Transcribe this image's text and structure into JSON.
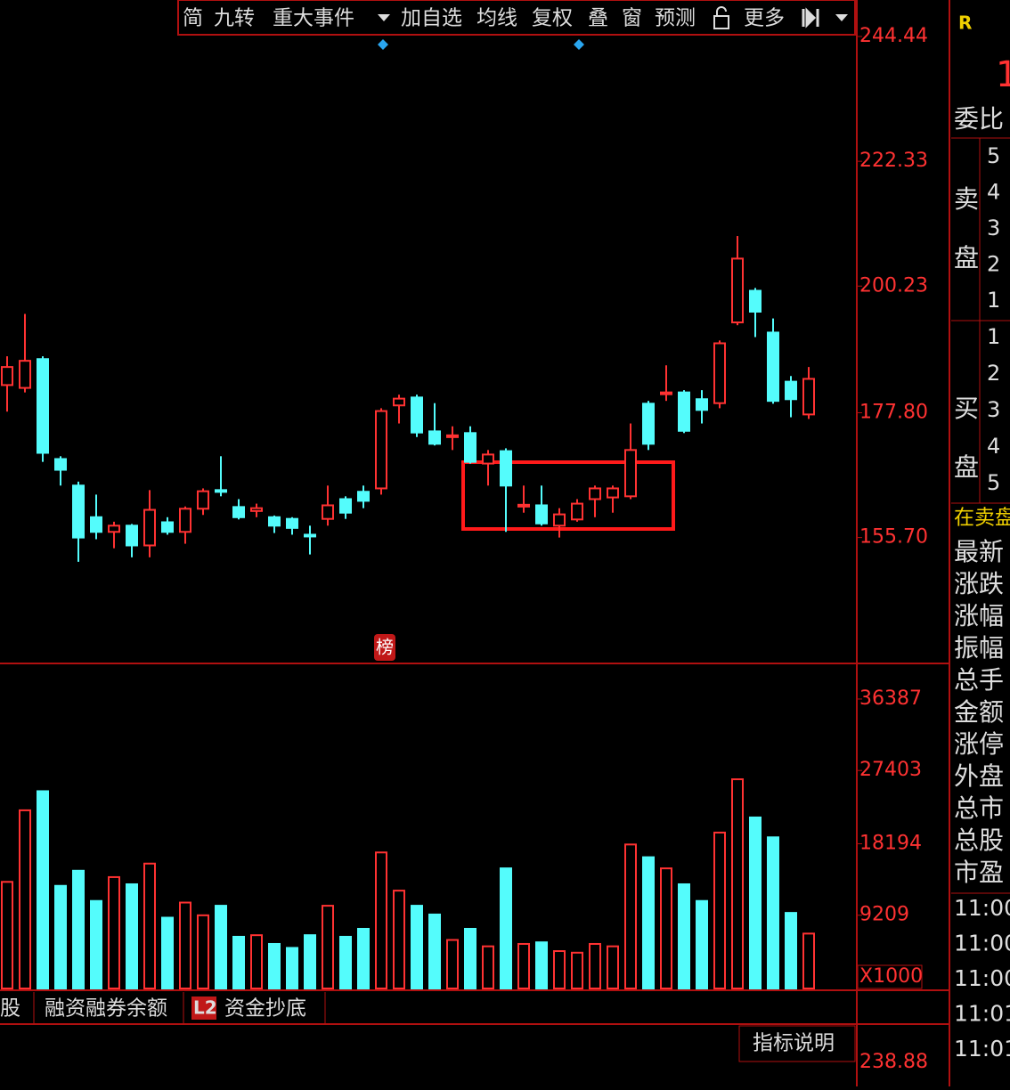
{
  "chart_data": {
    "type": "candlestick",
    "up_color": "#ff3232",
    "down_color": "#54fcfc",
    "ylim": [
      133.4,
      250.9
    ],
    "yticks": [
      244.44,
      222.33,
      200.23,
      {
        "value": 177.8,
        "label": "177.80"
      },
      {
        "value": 155.7,
        "label": "155.70"
      }
    ],
    "open": [
      182.7,
      182.2,
      187.3,
      169.6,
      164.9,
      159.3,
      156.7,
      157.8,
      154.3,
      158.4,
      156.7,
      160.8,
      164.1,
      161.1,
      160.4,
      159.3,
      159.0,
      156.2,
      159.0,
      162.5,
      163.8,
      164.4,
      179.1,
      180.5,
      174.5,
      173.5,
      174.2,
      168.8,
      171.0,
      161.2,
      161.4,
      157.8,
      158.9,
      162.5,
      162.8,
      163.0,
      179.4,
      181.1,
      181.4,
      180.2,
      179.5,
      193.8,
      199.4,
      192.0,
      183.3,
      177.5
    ],
    "high": [
      187.8,
      195.3,
      187.8,
      170.1,
      165.6,
      163.3,
      158.5,
      158.1,
      164.1,
      159.3,
      161.2,
      164.4,
      170.1,
      162.5,
      161.7,
      159.6,
      159.3,
      157.8,
      164.9,
      163.0,
      164.9,
      178.6,
      181.0,
      181.0,
      179.5,
      175.4,
      175.4,
      171.2,
      171.5,
      164.9,
      164.9,
      160.9,
      162.5,
      164.9,
      164.9,
      175.9,
      179.9,
      186.2,
      181.8,
      181.8,
      190.6,
      209.1,
      199.9,
      194.5,
      184.3,
      185.9
    ],
    "low": [
      178.0,
      181.4,
      169.1,
      164.9,
      151.4,
      155.4,
      153.8,
      152.2,
      152.2,
      156.2,
      154.6,
      159.7,
      163.0,
      158.9,
      159.3,
      156.5,
      156.2,
      152.7,
      157.8,
      159.0,
      160.9,
      163.3,
      175.9,
      173.5,
      172.0,
      171.2,
      168.8,
      164.9,
      156.7,
      160.1,
      157.8,
      155.7,
      158.5,
      159.3,
      160.1,
      162.5,
      171.2,
      179.9,
      174.2,
      175.9,
      178.6,
      193.3,
      191.2,
      179.4,
      177.0,
      176.7
    ],
    "close": [
      185.9,
      187.0,
      170.7,
      167.7,
      155.7,
      156.7,
      157.8,
      154.3,
      160.6,
      156.7,
      160.8,
      163.9,
      163.8,
      159.3,
      160.9,
      157.8,
      157.4,
      155.9,
      161.4,
      160.1,
      162.2,
      178.1,
      180.3,
      174.3,
      172.3,
      173.8,
      169.1,
      170.4,
      164.9,
      161.5,
      158.2,
      159.8,
      161.7,
      164.4,
      164.4,
      171.2,
      172.3,
      181.4,
      174.6,
      178.3,
      190.1,
      205.1,
      195.7,
      179.9,
      180.2,
      183.8
    ],
    "volume": {
      "ylim": [
        0,
        40300
      ],
      "yticks": [
        36387,
        27403,
        18194,
        9209
      ],
      "unit": "X1000",
      "values": [
        13400,
        22400,
        24800,
        12900,
        14800,
        11000,
        14000,
        13100,
        15700,
        8900,
        10800,
        9200,
        10400,
        6500,
        6700,
        5600,
        5100,
        6700,
        10400,
        6500,
        7500,
        17100,
        12300,
        10400,
        9300,
        6100,
        7500,
        5300,
        15100,
        5600,
        5800,
        4700,
        4500,
        5600,
        5300,
        18100,
        16500,
        15100,
        13100,
        11000,
        19600,
        26300,
        21500,
        19000,
        9500,
        6900
      ]
    },
    "lower_axis_label": "238.88"
  },
  "ui": {
    "toolbar": [
      "简",
      "九转",
      "重大事件",
      "加自选",
      "均线",
      "复权",
      "叠",
      "窗",
      "预测",
      "更多"
    ],
    "badge": "榜",
    "right_panel": {
      "flag": "R",
      "big": "1",
      "weibi": "委比",
      "sell": "卖盘",
      "buy": "买盘",
      "levels_sell": [
        "5",
        "4",
        "3",
        "2",
        "1"
      ],
      "levels_buy": [
        "1",
        "2",
        "3",
        "4",
        "5"
      ],
      "in_sell": "在卖盘",
      "fields": [
        "最新",
        "涨跌",
        "涨幅",
        "振幅",
        "总手",
        "金额",
        "涨停",
        "外盘",
        "总市",
        "总股",
        "市盈"
      ],
      "times": [
        "11:00",
        "11:00",
        "11:00",
        "11:01",
        "11:01"
      ]
    },
    "tabs": [
      "股",
      "融资融券余额",
      "L2",
      "资金抄底"
    ],
    "help": "指标说明"
  }
}
